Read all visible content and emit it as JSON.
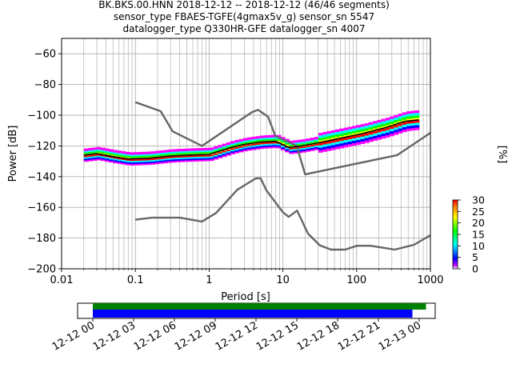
{
  "chart_data": [
    {
      "type": "line",
      "title": [
        "BK.BKS.00.HNN   2018-12-12 -- 2018-12-12  (46/46 segments)",
        "sensor_type FBAES-TGFE(4gmax5v_g) sensor_sn 5547",
        "datalogger_type Q330HR-GFE datalogger_sn 4007"
      ],
      "xlabel": "Period [s]",
      "ylabel": "Power [dB]",
      "xscale": "log",
      "xlim": [
        0.01,
        1000
      ],
      "ylim": [
        -200,
        -50
      ],
      "xticks": [
        0.01,
        0.1,
        1,
        10,
        100,
        1000
      ],
      "xtick_labels": [
        "0.01",
        "0.1",
        "1",
        "10",
        "100",
        "1000"
      ],
      "yticks": [
        -200,
        -180,
        -160,
        -140,
        -120,
        -100,
        -80,
        -60
      ],
      "ytick_labels": [
        "−200",
        "−180",
        "−160",
        "−140",
        "−120",
        "−100",
        "−80",
        "−60"
      ],
      "grid": true,
      "series": [
        {
          "role": "noise-model-high",
          "color": "#666666",
          "x": [
            0.1,
            0.22,
            0.32,
            0.8,
            3.8,
            4.6,
            6.3,
            7.9,
            15.4,
            20,
            354.8,
            1000
          ],
          "y": [
            -91.5,
            -97.4,
            -110.5,
            -120,
            -98.0,
            -96.5,
            -101.0,
            -113.5,
            -120,
            -138.5,
            -126.0,
            -111.5
          ]
        },
        {
          "role": "noise-model-low",
          "color": "#666666",
          "x": [
            0.1,
            0.17,
            0.4,
            0.8,
            1.24,
            2.4,
            4.3,
            5.0,
            6.0,
            10.0,
            12.0,
            15.6,
            21.9,
            31.6,
            45.0,
            70.0,
            101.0,
            154.0,
            328.0,
            600.0,
            1000
          ],
          "y": [
            -168.0,
            -166.7,
            -166.7,
            -169.2,
            -163.7,
            -148.6,
            -141.1,
            -141.1,
            -149.0,
            -163.2,
            -166.2,
            -162.1,
            -177.1,
            -184.7,
            -187.5,
            -187.5,
            -185.0,
            -185.0,
            -187.5,
            -184.4,
            -178.1
          ]
        },
        {
          "role": "psd-mode",
          "color": "#000000",
          "x": [
            0.02,
            0.03,
            0.05,
            0.08,
            0.15,
            0.3,
            0.5,
            1.0,
            2.0,
            3.0,
            5.0,
            8.0,
            12.0,
            18.0,
            30.0,
            60.0,
            120.0,
            250.0,
            450.0,
            700.0
          ],
          "y": [
            -126,
            -125,
            -127,
            -128.5,
            -128,
            -126.5,
            -126,
            -125.5,
            -121,
            -119,
            -117.5,
            -117,
            -121,
            -120,
            -118,
            -115,
            -112,
            -108,
            -104,
            -103
          ]
        }
      ],
      "colorbar": {
        "label": "[%]",
        "ticks": [
          0,
          5,
          10,
          15,
          20,
          25,
          30
        ],
        "range": [
          0,
          30
        ],
        "colormap": "pqlx"
      }
    },
    {
      "type": "bar",
      "role": "data-coverage",
      "xtick_labels": [
        "12-12 00",
        "12-12 03",
        "12-12 06",
        "12-12 09",
        "12-12 12",
        "12-12 15",
        "12-12 18",
        "12-12 21",
        "12-13 00"
      ],
      "bars": [
        {
          "role": "percent-data",
          "color": "#008000",
          "start": "12-12 00:00",
          "end": "12-13 00:30"
        },
        {
          "role": "gaps-coverage",
          "color": "#0000ff",
          "start": "12-12 00:00",
          "end": "12-12 23:30"
        }
      ]
    }
  ]
}
